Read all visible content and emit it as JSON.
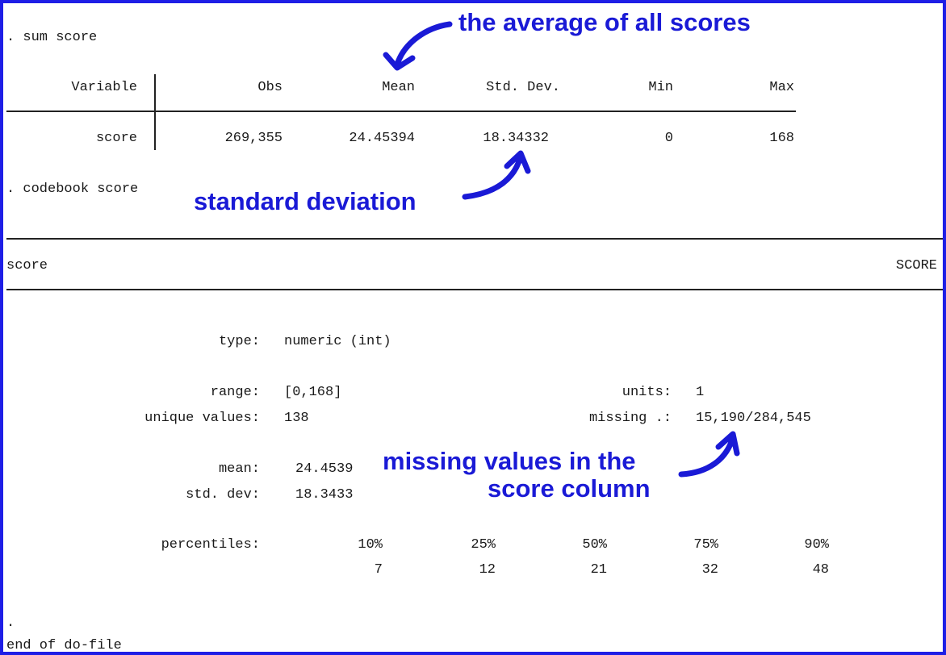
{
  "commands": {
    "sum": ". sum score",
    "codebook": ". codebook score",
    "end_dot": ".",
    "end": "end of do-file"
  },
  "summary_table": {
    "headers": [
      "Variable",
      "Obs",
      "Mean",
      "Std. Dev.",
      "Min",
      "Max"
    ],
    "row": [
      "score",
      "269,355",
      "24.45394",
      "18.34332",
      "0",
      "168"
    ]
  },
  "codebook": {
    "variable": "score",
    "label_right": "SCORE",
    "type_label": "type:",
    "type_value": "numeric (int)",
    "range_label": "range:",
    "range_value": "[0,168]",
    "units_label": "units:",
    "units_value": "1",
    "unique_label": "unique values:",
    "unique_value": "138",
    "missing_label": "missing .:",
    "missing_value": "15,190/284,545",
    "mean_label": "mean:",
    "mean_value": "24.4539",
    "sd_label": "std. dev:",
    "sd_value": "18.3433",
    "percentiles_label": "percentiles:",
    "percentiles": [
      "10%",
      "25%",
      "50%",
      "75%",
      "90%"
    ],
    "percentile_values": [
      "7",
      "12",
      "21",
      "32",
      "48"
    ]
  },
  "annotations": {
    "average": "the average of all scores",
    "std_dev": "standard deviation",
    "missing_line1": "missing values in the",
    "missing_line2": "score column"
  },
  "colors": {
    "annotation": "#1a1ad6",
    "border": "#1e1ee6",
    "text": "#1a1a1a"
  }
}
